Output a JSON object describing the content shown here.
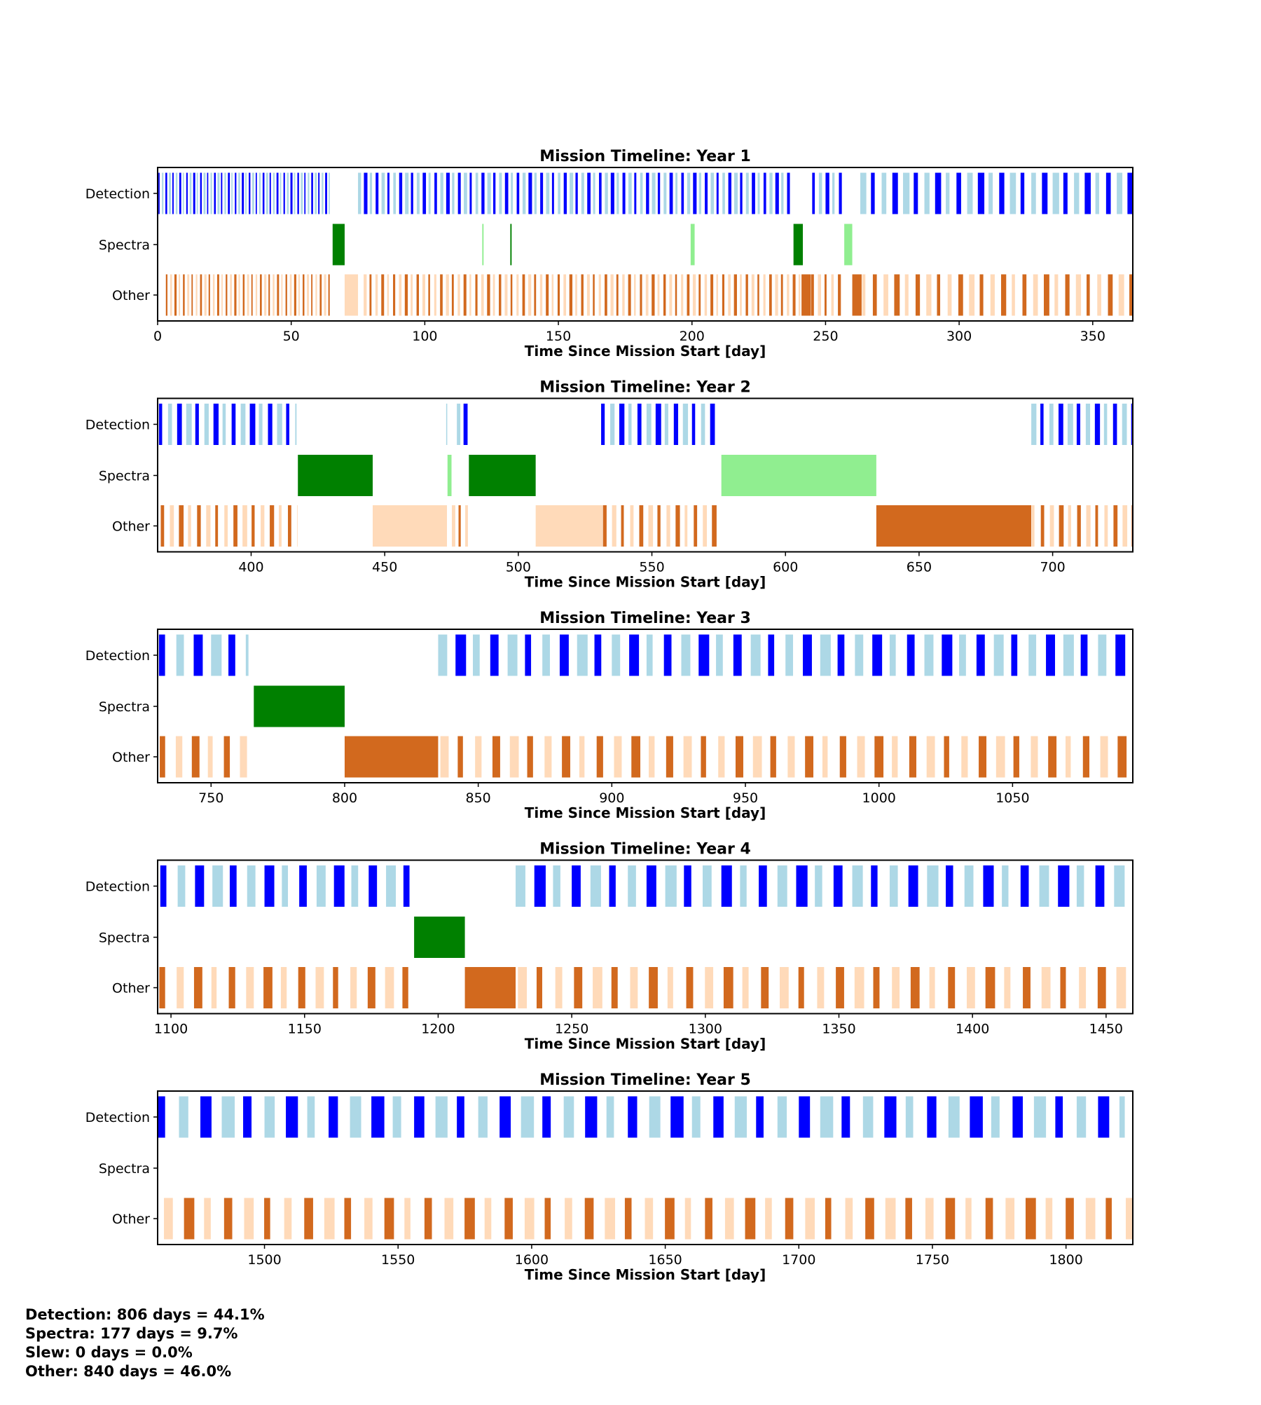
{
  "colors": {
    "detection_dark": "#0000ff",
    "detection_light": "#add8e6",
    "spectra_dark": "#008000",
    "spectra_light": "#90ee90",
    "other_dark": "#d2691e",
    "other_light": "#ffdab9"
  },
  "chart_data": [
    {
      "type": "timeline",
      "title": "Mission Timeline: Year 1",
      "xlabel": "Time Since Mission Start [day]",
      "yticklabels": [
        "Detection",
        "Spectra",
        "Other"
      ],
      "xlim": [
        0,
        365
      ],
      "xticks": [
        0,
        50,
        100,
        150,
        200,
        250,
        300,
        350
      ],
      "xticklabels": [
        "0",
        "50",
        "100",
        "150",
        "200",
        "250",
        "300",
        "350"
      ],
      "runs": [
        {
          "row": "Detection",
          "start": 0.3,
          "end": 65,
          "period": 1.3
        },
        {
          "row": "Detection",
          "start": 75,
          "end": 237,
          "period": 2.2
        },
        {
          "row": "Detection",
          "start": 245,
          "end": 257,
          "period": 2.5
        },
        {
          "row": "Detection",
          "start": 263,
          "end": 365,
          "period": 4
        },
        {
          "row": "Other",
          "start": 3,
          "end": 65,
          "period": 1.6
        },
        {
          "row": "Other",
          "start": 77,
          "end": 241,
          "period": 2.2
        },
        {
          "row": "Other",
          "start": 244.5,
          "end": 257,
          "period": 2.5
        },
        {
          "row": "Other",
          "start": 263.5,
          "end": 365,
          "period": 4
        }
      ],
      "blocks": [
        {
          "row": "Spectra",
          "start": 65.5,
          "end": 70,
          "shade": "dark"
        },
        {
          "row": "Spectra",
          "start": 121.5,
          "end": 122,
          "shade": "light"
        },
        {
          "row": "Spectra",
          "start": 132,
          "end": 132.5,
          "shade": "dark"
        },
        {
          "row": "Spectra",
          "start": 199.5,
          "end": 201,
          "shade": "light"
        },
        {
          "row": "Spectra",
          "start": 238,
          "end": 241.5,
          "shade": "dark"
        },
        {
          "row": "Spectra",
          "start": 257,
          "end": 260,
          "shade": "light"
        },
        {
          "row": "Other",
          "start": 70,
          "end": 75,
          "shade": "light"
        },
        {
          "row": "Other",
          "start": 241,
          "end": 244.5,
          "shade": "dark"
        },
        {
          "row": "Other",
          "start": 260,
          "end": 263.5,
          "shade": "dark"
        }
      ]
    },
    {
      "type": "timeline",
      "title": "Mission Timeline: Year 2",
      "xlabel": "Time Since Mission Start [day]",
      "yticklabels": [
        "Detection",
        "Spectra",
        "Other"
      ],
      "xlim": [
        365,
        730
      ],
      "xticks": [
        400,
        450,
        500,
        550,
        600,
        650,
        700
      ],
      "xticklabels": [
        "400",
        "450",
        "500",
        "550",
        "600",
        "650",
        "700"
      ],
      "runs": [
        {
          "row": "Detection",
          "start": 365.5,
          "end": 417,
          "period": 3.4
        },
        {
          "row": "Detection",
          "start": 477,
          "end": 482,
          "period": 2.5
        },
        {
          "row": "Detection",
          "start": 531,
          "end": 575,
          "period": 3.4
        },
        {
          "row": "Detection",
          "start": 692,
          "end": 730,
          "period": 3.4
        },
        {
          "row": "Other",
          "start": 366,
          "end": 417,
          "period": 3.4
        },
        {
          "row": "Other",
          "start": 475,
          "end": 482,
          "period": 2.5
        },
        {
          "row": "Other",
          "start": 531.5,
          "end": 575,
          "period": 3.4
        },
        {
          "row": "Other",
          "start": 692,
          "end": 729.5,
          "period": 3.4
        }
      ],
      "blocks": [
        {
          "row": "Detection",
          "start": 473,
          "end": 473.4,
          "shade": "light"
        },
        {
          "row": "Spectra",
          "start": 417.5,
          "end": 445.5,
          "shade": "dark"
        },
        {
          "row": "Spectra",
          "start": 473.5,
          "end": 475,
          "shade": "light"
        },
        {
          "row": "Spectra",
          "start": 481.5,
          "end": 506.5,
          "shade": "dark"
        },
        {
          "row": "Spectra",
          "start": 576,
          "end": 634,
          "shade": "light"
        },
        {
          "row": "Other",
          "start": 445.5,
          "end": 473.3,
          "shade": "light"
        },
        {
          "row": "Other",
          "start": 506.5,
          "end": 531.5,
          "shade": "light"
        },
        {
          "row": "Other",
          "start": 634,
          "end": 692,
          "shade": "dark"
        }
      ]
    },
    {
      "type": "timeline",
      "title": "Mission Timeline: Year 3",
      "xlabel": "Time Since Mission Start [day]",
      "yticklabels": [
        "Detection",
        "Spectra",
        "Other"
      ],
      "xlim": [
        730,
        1095
      ],
      "xticks": [
        750,
        800,
        850,
        900,
        950,
        1000,
        1050
      ],
      "xticklabels": [
        "750",
        "800",
        "850",
        "900",
        "950",
        "1000",
        "1050"
      ],
      "runs": [
        {
          "row": "Detection",
          "start": 730.5,
          "end": 764,
          "period": 6.5
        },
        {
          "row": "Detection",
          "start": 835,
          "end": 1095,
          "period": 6.5
        },
        {
          "row": "Other",
          "start": 730.5,
          "end": 766,
          "period": 6
        },
        {
          "row": "Other",
          "start": 835.5,
          "end": 1094,
          "period": 6.5
        }
      ],
      "blocks": [
        {
          "row": "Spectra",
          "start": 766,
          "end": 800,
          "shade": "dark"
        },
        {
          "row": "Other",
          "start": 800,
          "end": 835,
          "shade": "dark"
        }
      ]
    },
    {
      "type": "timeline",
      "title": "Mission Timeline: Year 4",
      "xlabel": "Time Since Mission Start [day]",
      "yticklabels": [
        "Detection",
        "Spectra",
        "Other"
      ],
      "xlim": [
        1095,
        1460
      ],
      "xticks": [
        1100,
        1150,
        1200,
        1250,
        1300,
        1350,
        1400,
        1450
      ],
      "xticklabels": [
        "1100",
        "1150",
        "1200",
        "1250",
        "1300",
        "1350",
        "1400",
        "1450"
      ],
      "runs": [
        {
          "row": "Detection",
          "start": 1096,
          "end": 1191,
          "period": 6.5
        },
        {
          "row": "Detection",
          "start": 1229,
          "end": 1458,
          "period": 7
        },
        {
          "row": "Other",
          "start": 1095.3,
          "end": 1191,
          "period": 6.5
        },
        {
          "row": "Other",
          "start": 1229.5,
          "end": 1460,
          "period": 7
        }
      ],
      "blocks": [
        {
          "row": "Spectra",
          "start": 1191,
          "end": 1210,
          "shade": "dark"
        },
        {
          "row": "Other",
          "start": 1210,
          "end": 1229,
          "shade": "dark"
        }
      ]
    },
    {
      "type": "timeline",
      "title": "Mission Timeline: Year 5",
      "xlabel": "Time Since Mission Start [day]",
      "yticklabels": [
        "Detection",
        "Spectra",
        "Other"
      ],
      "xlim": [
        1460,
        1825
      ],
      "xticks": [
        1500,
        1550,
        1600,
        1650,
        1700,
        1750,
        1800
      ],
      "xticklabels": [
        "1500",
        "1550",
        "1600",
        "1650",
        "1700",
        "1750",
        "1800"
      ],
      "runs": [
        {
          "row": "Detection",
          "start": 1460,
          "end": 1822,
          "period": 8
        },
        {
          "row": "Other",
          "start": 1462,
          "end": 1825,
          "period": 7.5
        }
      ],
      "blocks": []
    }
  ],
  "summary": [
    "Detection: 806 days = 44.1%",
    "Spectra: 177 days = 9.7%",
    "Slew: 0 days = 0.0%",
    "Other: 840 days = 46.0%"
  ]
}
